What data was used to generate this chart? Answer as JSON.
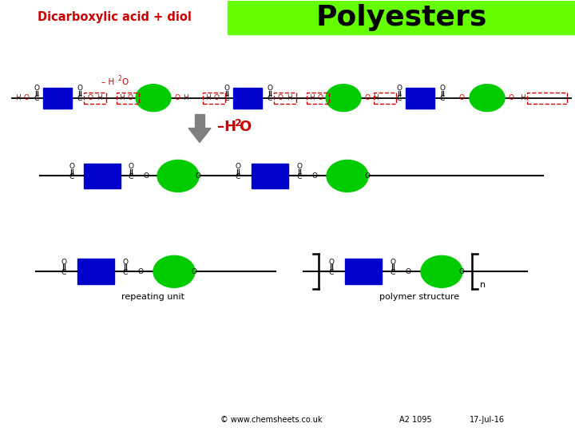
{
  "title": "Polyesters",
  "subtitle": "Dicarboxylic acid + diol",
  "title_bg": "#66ff00",
  "title_color": "#000000",
  "subtitle_color": "#cc0000",
  "bg_color": "#ffffff",
  "blue_color": "#0000cc",
  "green_color": "#00cc00",
  "red_color": "#cc0000",
  "black_color": "#000000",
  "gray_color": "#808080",
  "footer1": "© www.chemsheets.co.uk",
  "footer2": "A2 1095",
  "footer3": "17-Jul-16"
}
